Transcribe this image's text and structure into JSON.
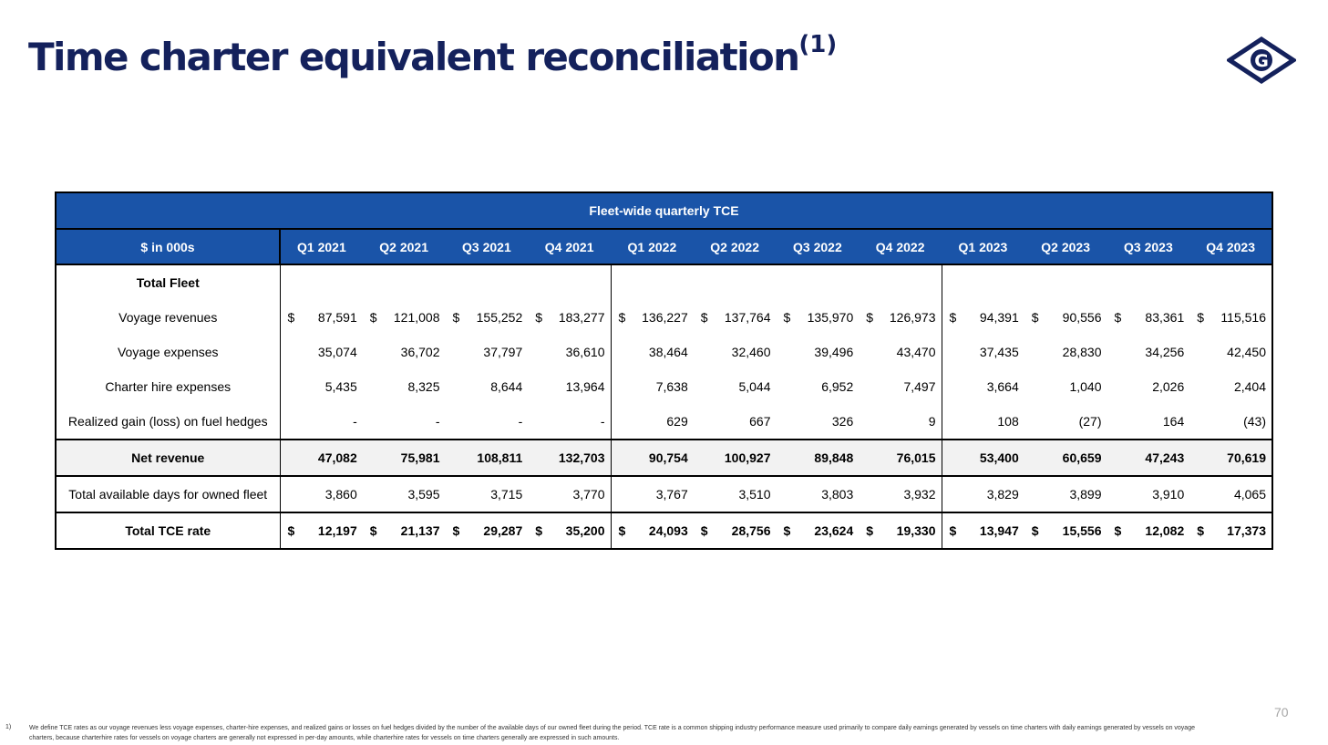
{
  "title": "Time charter equivalent reconciliation",
  "title_sup": "(1)",
  "logo": {
    "letter": "G",
    "icon": "company-logo-diamond-g",
    "color": "#14215c"
  },
  "table": {
    "banner": "Fleet-wide quarterly TCE",
    "unit_label": "$ in 000s",
    "quarters": [
      "Q1 2021",
      "Q2 2021",
      "Q3 2021",
      "Q4 2021",
      "Q1 2022",
      "Q2 2022",
      "Q3 2022",
      "Q4 2022",
      "Q1 2023",
      "Q2 2023",
      "Q3 2023",
      "Q4 2023"
    ],
    "section_label": "Total Fleet",
    "rows": [
      {
        "label": "Voyage revenues",
        "dollar": true,
        "values": [
          "87,591",
          "121,008",
          "155,252",
          "183,277",
          "136,227",
          "137,764",
          "135,970",
          "126,973",
          "94,391",
          "90,556",
          "83,361",
          "115,516"
        ]
      },
      {
        "label": "Voyage expenses",
        "dollar": false,
        "values": [
          "35,074",
          "36,702",
          "37,797",
          "36,610",
          "38,464",
          "32,460",
          "39,496",
          "43,470",
          "37,435",
          "28,830",
          "34,256",
          "42,450"
        ]
      },
      {
        "label": "Charter hire expenses",
        "dollar": false,
        "values": [
          "5,435",
          "8,325",
          "8,644",
          "13,964",
          "7,638",
          "5,044",
          "6,952",
          "7,497",
          "3,664",
          "1,040",
          "2,026",
          "2,404"
        ]
      },
      {
        "label": "Realized gain (loss) on fuel hedges",
        "dollar": false,
        "values": [
          "-",
          "-",
          "-",
          "-",
          "629",
          "667",
          "326",
          "9",
          "108",
          "(27)",
          "164",
          "(43)"
        ]
      }
    ],
    "net_revenue": {
      "label": "Net revenue",
      "values": [
        "47,082",
        "75,981",
        "108,811",
        "132,703",
        "90,754",
        "100,927",
        "89,848",
        "76,015",
        "53,400",
        "60,659",
        "47,243",
        "70,619"
      ]
    },
    "available_days": {
      "label": "Total available days for owned fleet",
      "values": [
        "3,860",
        "3,595",
        "3,715",
        "3,770",
        "3,767",
        "3,510",
        "3,803",
        "3,932",
        "3,829",
        "3,899",
        "3,910",
        "4,065"
      ]
    },
    "tce_rate": {
      "label": "Total TCE rate",
      "values": [
        "12,197",
        "21,137",
        "29,287",
        "35,200",
        "24,093",
        "28,756",
        "23,624",
        "19,330",
        "13,947",
        "15,556",
        "12,082",
        "17,373"
      ]
    },
    "currency_symbol": "$"
  },
  "page_number": "70",
  "footnote_marker": "1)",
  "footnote": "We define TCE rates as our voyage revenues less voyage expenses, charter-hire expenses, and realized gains or losses on fuel hedges divided by the number of the available days of our owned fleet during the period. TCE rate is a common shipping industry performance measure used primarily to compare daily earnings generated by vessels on time charters with daily earnings generated by vessels on voyage charters, because charterhire rates for vessels on voyage charters are generally not expressed in per-day amounts, while charterhire rates for vessels on time charters generally are expressed in such amounts.",
  "colors": {
    "header_blue": "#1a54a8",
    "title_navy": "#14215c"
  }
}
